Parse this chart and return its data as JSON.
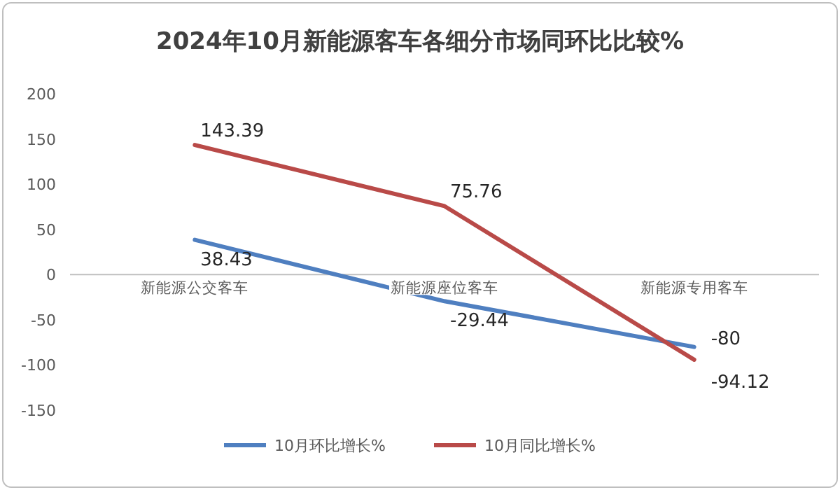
{
  "chart_data": {
    "type": "line",
    "title": "2024年10月新能源客车各细分市场同环比比较%",
    "categories": [
      "新能源公交客车",
      "新能源座位客车",
      "新能源专用客车"
    ],
    "series": [
      {
        "name": "10月环比增长%",
        "color": "#4f7fc0",
        "values": [
          38.43,
          -29.44,
          -80
        ]
      },
      {
        "name": "10月同比增长%",
        "color": "#b94a48",
        "values": [
          143.39,
          75.76,
          -94.12
        ]
      }
    ],
    "ylim": [
      -150,
      200
    ],
    "yticks": [
      -150,
      -100,
      -50,
      0,
      50,
      100,
      150,
      200
    ],
    "data_labels": true,
    "legend": "bottom",
    "grid": false,
    "marker": "none",
    "line_style": "solid"
  }
}
